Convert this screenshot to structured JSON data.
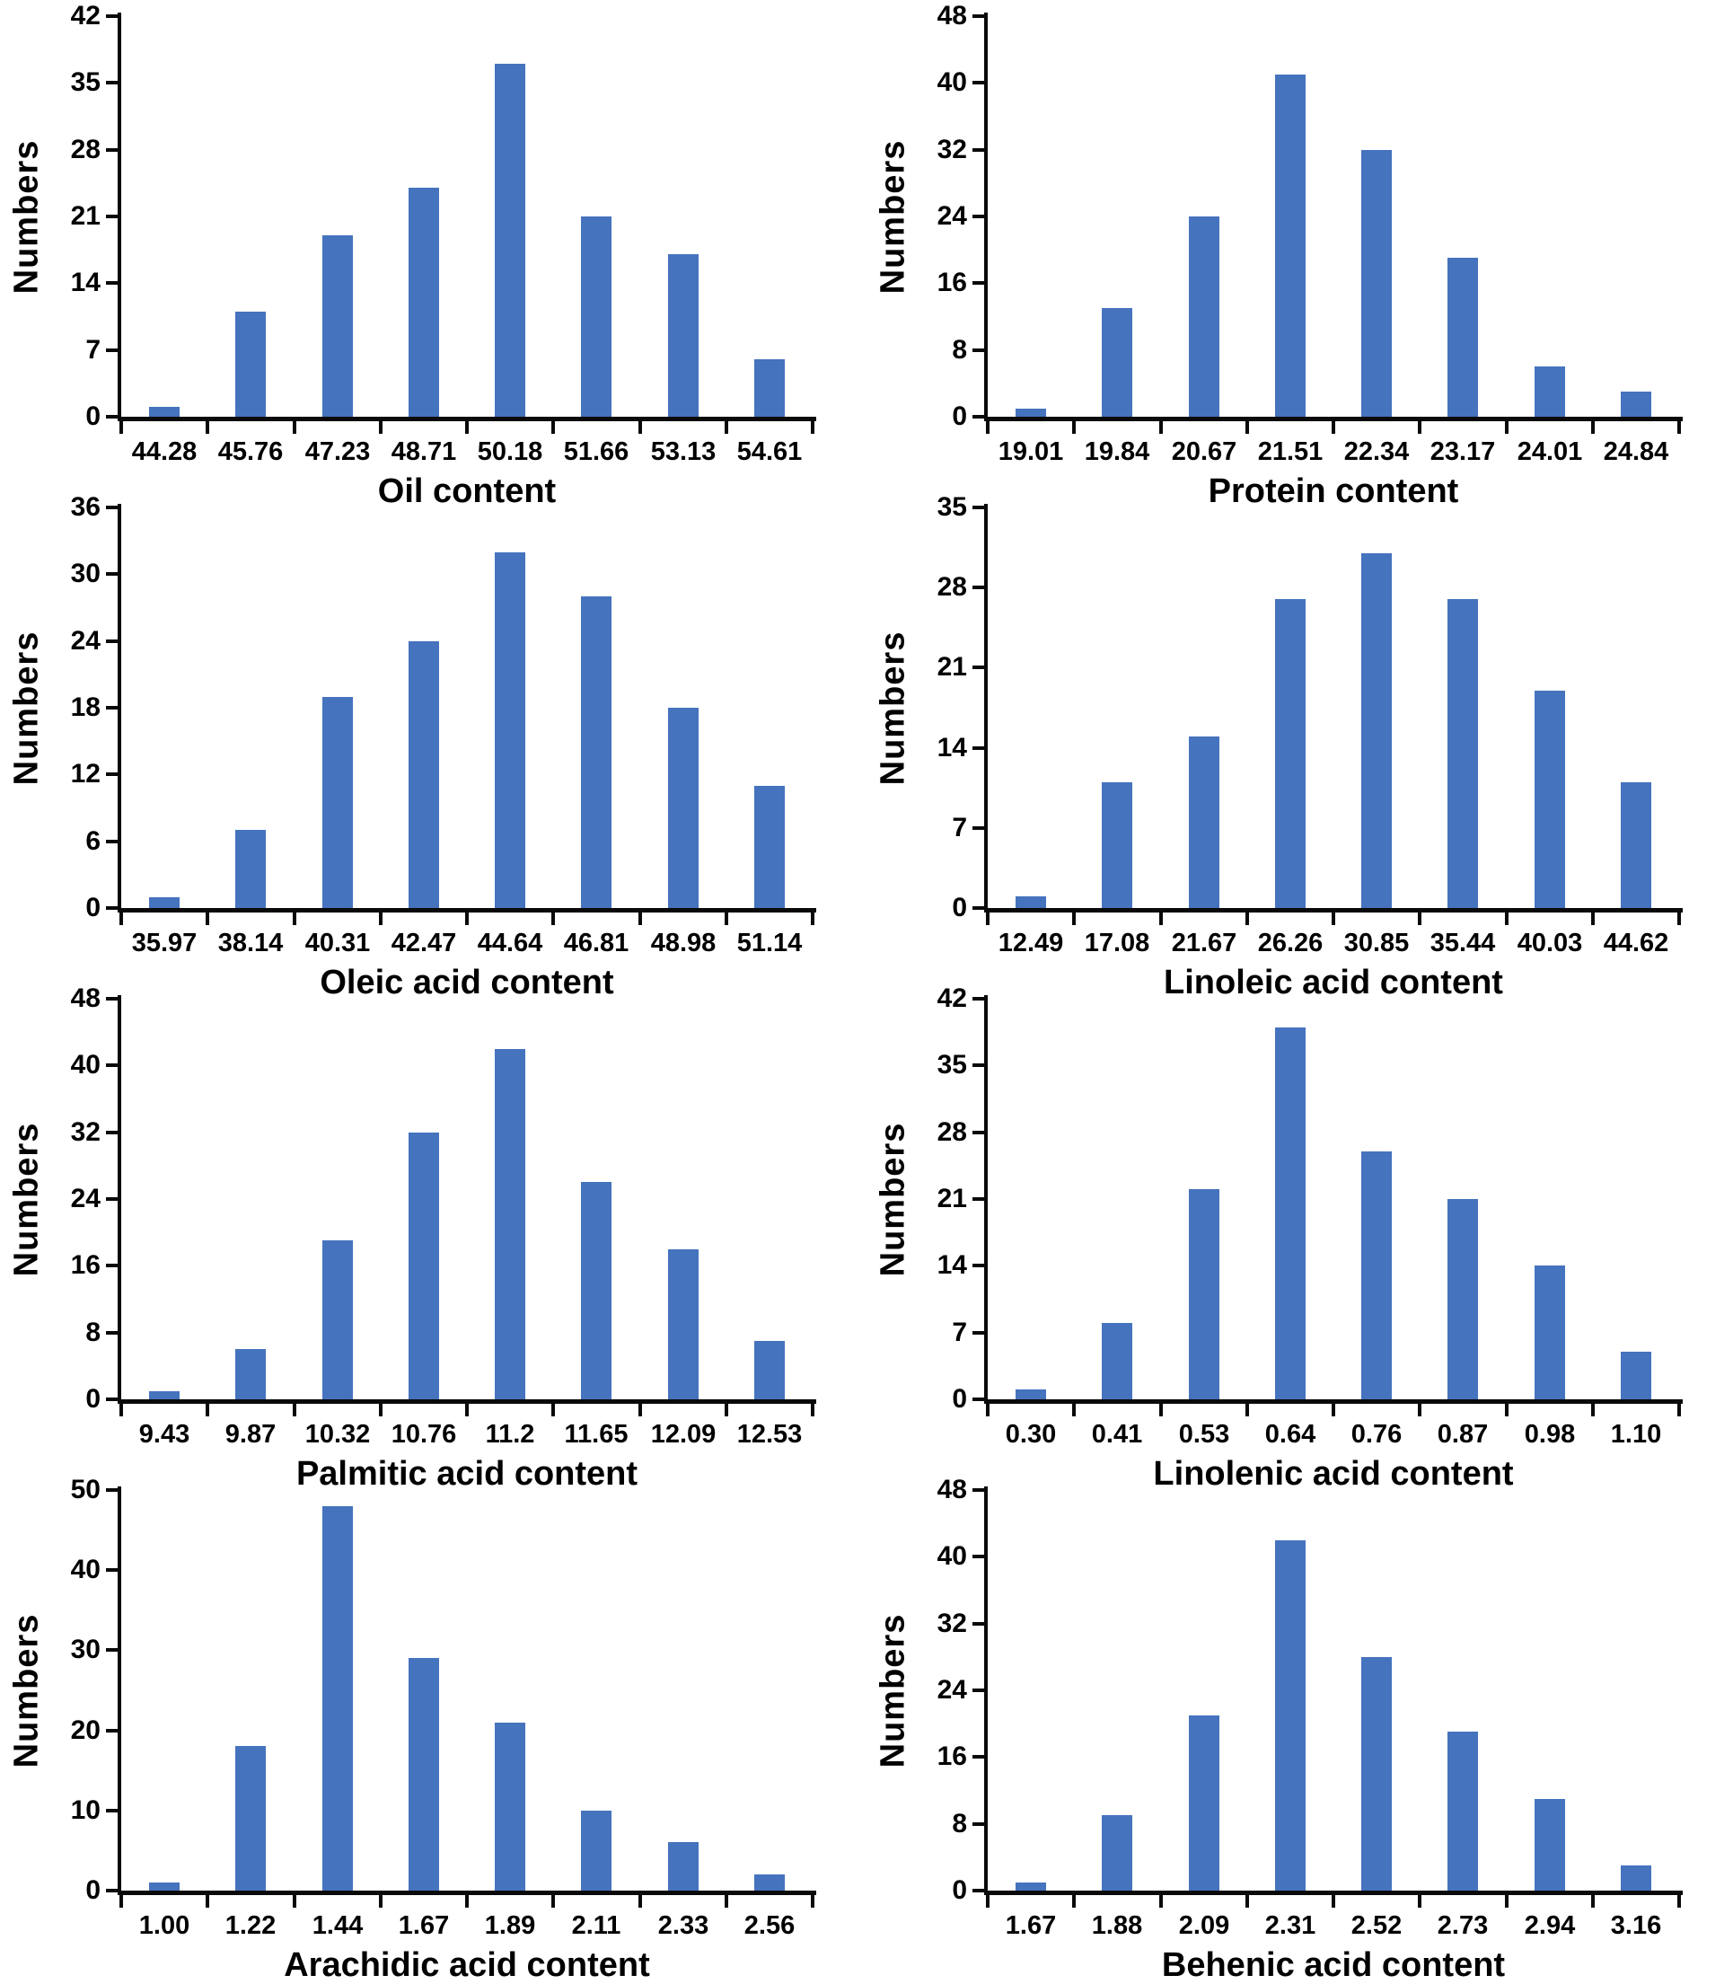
{
  "figure": {
    "description": "Frequency distribution histograms of seed quality traits",
    "bar_color": "#4573BE",
    "axis_color": "#0a0a0a",
    "text_color": "#000000",
    "grid_layout": "2 columns x 4 rows",
    "ylabel": "Numbers"
  },
  "chart_data": [
    {
      "id": "oil-content",
      "type": "bar",
      "xlabel": "Oil content",
      "ylabel": "Numbers",
      "categories": [
        "44.28",
        "45.76",
        "47.23",
        "48.71",
        "50.18",
        "51.66",
        "53.13",
        "54.61"
      ],
      "values": [
        1,
        11,
        19,
        24,
        37,
        21,
        17,
        6
      ],
      "ylim": [
        0,
        42
      ],
      "yticks": [
        0,
        7,
        14,
        21,
        28,
        35,
        42
      ],
      "grid": "off",
      "legend": "none"
    },
    {
      "id": "protein-content",
      "type": "bar",
      "xlabel": "Protein content",
      "ylabel": "Numbers",
      "categories": [
        "19.01",
        "19.84",
        "20.67",
        "21.51",
        "22.34",
        "23.17",
        "24.01",
        "24.84"
      ],
      "values": [
        1,
        13,
        24,
        41,
        32,
        19,
        6,
        3
      ],
      "ylim": [
        0,
        48
      ],
      "yticks": [
        0,
        8,
        16,
        24,
        32,
        40,
        48
      ],
      "grid": "off",
      "legend": "none"
    },
    {
      "id": "oleic-acid-content",
      "type": "bar",
      "xlabel": "Oleic acid content",
      "ylabel": "Numbers",
      "categories": [
        "35.97",
        "38.14",
        "40.31",
        "42.47",
        "44.64",
        "46.81",
        "48.98",
        "51.14"
      ],
      "values": [
        1,
        7,
        19,
        24,
        32,
        28,
        18,
        11
      ],
      "ylim": [
        0,
        36
      ],
      "yticks": [
        0,
        6,
        12,
        18,
        24,
        30,
        36
      ],
      "grid": "off",
      "legend": "none"
    },
    {
      "id": "linoleic-acid-content",
      "type": "bar",
      "xlabel": "Linoleic acid content",
      "ylabel": "Numbers",
      "categories": [
        "12.49",
        "17.08",
        "21.67",
        "26.26",
        "30.85",
        "35.44",
        "40.03",
        "44.62"
      ],
      "values": [
        1,
        11,
        15,
        27,
        31,
        27,
        19,
        11
      ],
      "ylim": [
        0,
        35
      ],
      "yticks": [
        0,
        7,
        14,
        21,
        28,
        35
      ],
      "grid": "off",
      "legend": "none"
    },
    {
      "id": "palmitic-acid-content",
      "type": "bar",
      "xlabel": "Palmitic acid content",
      "ylabel": "Numbers",
      "categories": [
        "9.43",
        "9.87",
        "10.32",
        "10.76",
        "11.2",
        "11.65",
        "12.09",
        "12.53"
      ],
      "values": [
        1,
        6,
        19,
        32,
        42,
        26,
        18,
        7
      ],
      "ylim": [
        0,
        48
      ],
      "yticks": [
        0,
        8,
        16,
        24,
        32,
        40,
        48
      ],
      "grid": "off",
      "legend": "none"
    },
    {
      "id": "linolenic-acid-content",
      "type": "bar",
      "xlabel": "Linolenic acid content",
      "ylabel": "Numbers",
      "categories": [
        "0.30",
        "0.41",
        "0.53",
        "0.64",
        "0.76",
        "0.87",
        "0.98",
        "1.10"
      ],
      "values": [
        1,
        8,
        22,
        39,
        26,
        21,
        14,
        5
      ],
      "ylim": [
        0,
        42
      ],
      "yticks": [
        0,
        7,
        14,
        21,
        28,
        35,
        42
      ],
      "grid": "off",
      "legend": "none"
    },
    {
      "id": "arachidic-acid-content",
      "type": "bar",
      "xlabel": "Arachidic acid content",
      "ylabel": "Numbers",
      "categories": [
        "1.00",
        "1.22",
        "1.44",
        "1.67",
        "1.89",
        "2.11",
        "2.33",
        "2.56"
      ],
      "values": [
        1,
        18,
        48,
        29,
        21,
        10,
        6,
        2
      ],
      "ylim": [
        0,
        50
      ],
      "yticks": [
        0,
        10,
        20,
        30,
        40,
        50
      ],
      "grid": "off",
      "legend": "none"
    },
    {
      "id": "behenic-acid-content",
      "type": "bar",
      "xlabel": "Behenic acid content",
      "ylabel": "Numbers",
      "categories": [
        "1.67",
        "1.88",
        "2.09",
        "2.31",
        "2.52",
        "2.73",
        "2.94",
        "3.16"
      ],
      "values": [
        1,
        9,
        21,
        42,
        28,
        19,
        11,
        3
      ],
      "ylim": [
        0,
        48
      ],
      "yticks": [
        0,
        8,
        16,
        24,
        32,
        40,
        48
      ],
      "grid": "off",
      "legend": "none"
    }
  ]
}
